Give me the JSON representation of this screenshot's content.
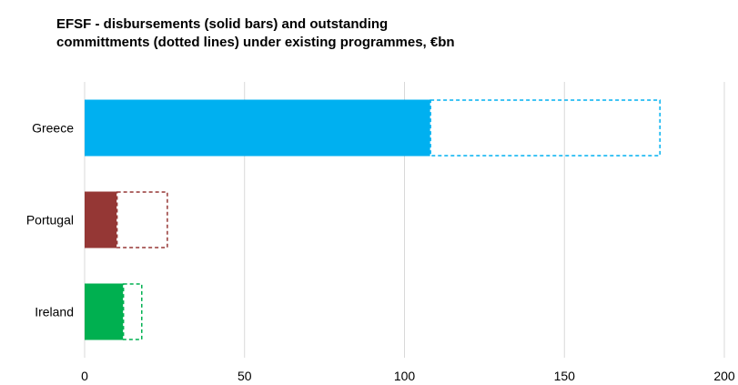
{
  "chart_data": {
    "type": "bar",
    "orientation": "horizontal",
    "title_lines": [
      "EFSF - disbursements (solid bars) and outstanding",
      "committments (dotted lines) under existing programmes, €bn"
    ],
    "categories": [
      "Greece",
      "Portugal",
      "Ireland"
    ],
    "series": [
      {
        "name": "disbursements (solid bars)",
        "style": "solid",
        "values": [
          108,
          10,
          12
        ]
      },
      {
        "name": "outstanding committments (dotted lines)",
        "style": "dotted",
        "values": [
          72,
          16,
          6
        ]
      }
    ],
    "colors": {
      "Greece": "#00B0F0",
      "Portugal": "#953735",
      "Ireland": "#00B050"
    },
    "xlim": [
      0,
      200
    ],
    "xticks": [
      0,
      50,
      100,
      150,
      200
    ],
    "grid": "vertical",
    "gridColor": "#d9d9d9",
    "legend": "none"
  }
}
